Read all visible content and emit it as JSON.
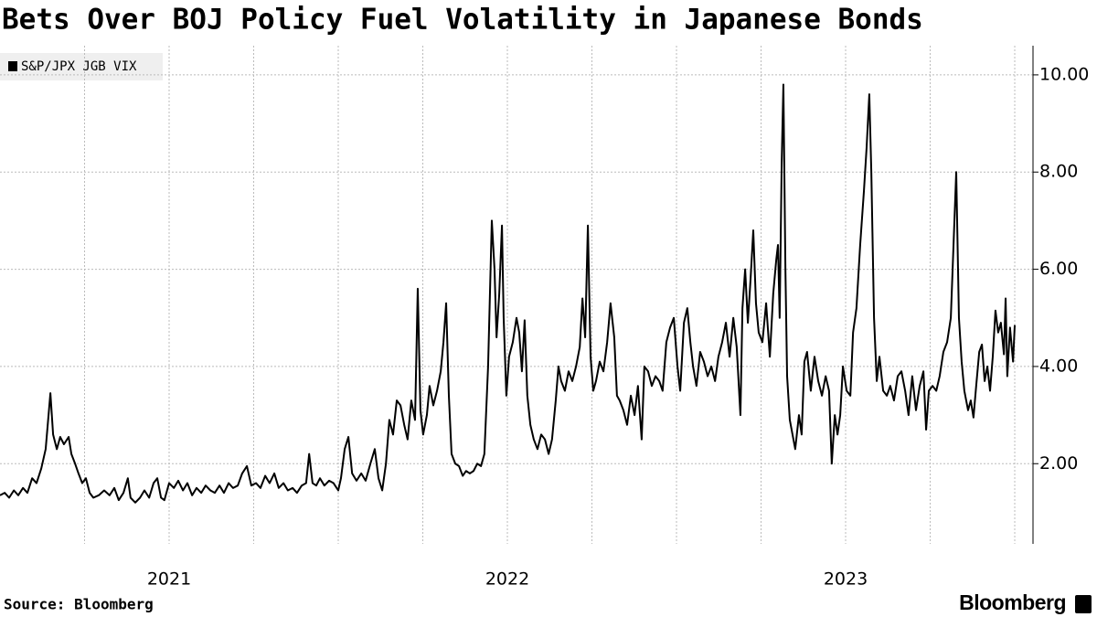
{
  "chart_data": {
    "type": "line",
    "title": "Bets Over BOJ Policy Fuel Volatility in Japanese Bonds",
    "source": "Source: Bloomberg",
    "brand": "Bloomberg",
    "legend": "top-left",
    "grid": true,
    "xlim": [
      2020.5,
      2023.554
    ],
    "xticks": [
      2021,
      2022,
      2023
    ],
    "xgrid": [
      2020.75,
      2021,
      2021.25,
      2021.5,
      2021.75,
      2022,
      2022.25,
      2022.5,
      2022.75,
      2023,
      2023.25,
      2023.5
    ],
    "ylim": [
      0.35,
      10.6
    ],
    "yticks": [
      {
        "value": 2,
        "label": "2.00"
      },
      {
        "value": 4,
        "label": "4.00"
      },
      {
        "value": 6,
        "label": "6.00"
      },
      {
        "value": 8,
        "label": "8.00"
      },
      {
        "value": 10,
        "label": "10.00"
      }
    ],
    "x": [
      2020.5,
      2020.514,
      2020.527,
      2020.541,
      2020.554,
      2020.568,
      2020.581,
      2020.595,
      2020.608,
      2020.622,
      2020.635,
      2020.649,
      2020.657,
      2020.668,
      2020.678,
      2020.689,
      2020.703,
      2020.711,
      2020.722,
      2020.732,
      2020.743,
      2020.754,
      2020.765,
      2020.776,
      2020.792,
      2020.808,
      2020.824,
      2020.838,
      2020.851,
      2020.865,
      2020.878,
      2020.886,
      2020.9,
      2020.914,
      2020.927,
      2020.941,
      2020.954,
      2020.965,
      2020.976,
      2020.986,
      2021.0,
      2021.014,
      2021.027,
      2021.041,
      2021.054,
      2021.068,
      2021.081,
      2021.095,
      2021.108,
      2021.122,
      2021.135,
      2021.149,
      2021.162,
      2021.176,
      2021.189,
      2021.203,
      2021.216,
      2021.23,
      2021.243,
      2021.257,
      2021.27,
      2021.284,
      2021.297,
      2021.311,
      2021.324,
      2021.338,
      2021.351,
      2021.365,
      2021.378,
      2021.392,
      2021.405,
      2021.414,
      2021.424,
      2021.435,
      2021.446,
      2021.459,
      2021.473,
      2021.486,
      2021.5,
      2021.508,
      2021.519,
      2021.53,
      2021.541,
      2021.554,
      2021.568,
      2021.581,
      2021.595,
      2021.608,
      2021.619,
      2021.63,
      2021.641,
      2021.651,
      2021.662,
      2021.673,
      2021.684,
      2021.695,
      2021.705,
      2021.716,
      2021.727,
      2021.735,
      2021.743,
      2021.751,
      2021.762,
      2021.77,
      2021.781,
      2021.792,
      2021.803,
      2021.811,
      2021.819,
      2021.827,
      2021.835,
      2021.846,
      2021.857,
      2021.868,
      2021.878,
      2021.889,
      2021.9,
      2021.911,
      2021.922,
      2021.932,
      2021.943,
      2021.954,
      2021.962,
      2021.968,
      2021.976,
      2021.984,
      2021.989,
      2021.997,
      2022.005,
      2022.016,
      2022.027,
      2022.035,
      2022.043,
      2022.051,
      2022.059,
      2022.068,
      2022.078,
      2022.089,
      2022.1,
      2022.111,
      2022.122,
      2022.132,
      2022.143,
      2022.151,
      2022.159,
      2022.17,
      2022.181,
      2022.192,
      2022.203,
      2022.214,
      2022.222,
      2022.23,
      2022.238,
      2022.246,
      2022.254,
      2022.262,
      2022.273,
      2022.284,
      2022.295,
      2022.305,
      2022.316,
      2022.324,
      2022.332,
      2022.343,
      2022.354,
      2022.365,
      2022.376,
      2022.386,
      2022.397,
      2022.405,
      2022.416,
      2022.427,
      2022.438,
      2022.449,
      2022.459,
      2022.47,
      2022.481,
      2022.492,
      2022.503,
      2022.511,
      2022.522,
      2022.532,
      2022.541,
      2022.549,
      2022.559,
      2022.57,
      2022.581,
      2022.592,
      2022.603,
      2022.614,
      2022.624,
      2022.635,
      2022.646,
      2022.657,
      2022.668,
      2022.678,
      2022.689,
      2022.695,
      2022.703,
      2022.711,
      2022.719,
      2022.727,
      2022.735,
      2022.743,
      2022.754,
      2022.765,
      2022.776,
      2022.786,
      2022.795,
      2022.8,
      2022.805,
      2022.811,
      2022.816,
      2022.822,
      2022.827,
      2022.835,
      2022.843,
      2022.851,
      2022.862,
      2022.87,
      2022.878,
      2022.886,
      2022.897,
      2022.908,
      2022.919,
      2022.93,
      2022.941,
      2022.951,
      2022.959,
      2022.968,
      2022.976,
      2022.984,
      2022.992,
      2023.003,
      2023.014,
      2023.022,
      2023.032,
      2023.043,
      2023.054,
      2023.062,
      2023.07,
      2023.076,
      2023.084,
      2023.092,
      2023.1,
      2023.111,
      2023.122,
      2023.132,
      2023.143,
      2023.154,
      2023.165,
      2023.176,
      2023.186,
      2023.197,
      2023.208,
      2023.219,
      2023.23,
      2023.238,
      2023.246,
      2023.257,
      2023.268,
      2023.278,
      2023.289,
      2023.3,
      2023.311,
      2023.319,
      2023.327,
      2023.335,
      2023.343,
      2023.351,
      2023.362,
      2023.37,
      2023.378,
      2023.386,
      2023.395,
      2023.403,
      2023.411,
      2023.419,
      2023.427,
      2023.435,
      2023.443,
      2023.451,
      2023.459,
      2023.468,
      2023.473,
      2023.478,
      2023.486,
      2023.495,
      2023.5
    ],
    "series": [
      {
        "name": "S&P/JPX JGB VIX",
        "color": "#000000",
        "values": [
          1.35,
          1.4,
          1.3,
          1.45,
          1.35,
          1.5,
          1.4,
          1.7,
          1.6,
          1.9,
          2.3,
          3.45,
          2.6,
          2.3,
          2.55,
          2.4,
          2.55,
          2.2,
          2.0,
          1.8,
          1.6,
          1.7,
          1.4,
          1.3,
          1.35,
          1.45,
          1.35,
          1.5,
          1.25,
          1.4,
          1.7,
          1.3,
          1.2,
          1.3,
          1.45,
          1.3,
          1.6,
          1.7,
          1.3,
          1.25,
          1.6,
          1.5,
          1.65,
          1.45,
          1.6,
          1.35,
          1.5,
          1.4,
          1.55,
          1.45,
          1.4,
          1.55,
          1.4,
          1.6,
          1.5,
          1.55,
          1.8,
          1.95,
          1.55,
          1.6,
          1.5,
          1.75,
          1.6,
          1.8,
          1.5,
          1.6,
          1.45,
          1.5,
          1.4,
          1.55,
          1.6,
          2.2,
          1.6,
          1.55,
          1.7,
          1.55,
          1.65,
          1.6,
          1.45,
          1.7,
          2.3,
          2.55,
          1.8,
          1.65,
          1.8,
          1.65,
          2.0,
          2.3,
          1.7,
          1.45,
          2.0,
          2.9,
          2.6,
          3.3,
          3.2,
          2.8,
          2.5,
          3.3,
          2.9,
          5.6,
          3.1,
          2.6,
          3.0,
          3.6,
          3.2,
          3.5,
          3.9,
          4.5,
          5.3,
          3.4,
          2.2,
          2.0,
          1.95,
          1.75,
          1.85,
          1.8,
          1.85,
          2.0,
          1.95,
          2.2,
          4.0,
          7.0,
          6.0,
          4.6,
          5.5,
          6.9,
          5.0,
          3.4,
          4.2,
          4.5,
          5.0,
          4.7,
          3.9,
          4.95,
          3.4,
          2.8,
          2.5,
          2.3,
          2.6,
          2.5,
          2.2,
          2.5,
          3.3,
          4.0,
          3.7,
          3.5,
          3.9,
          3.7,
          4.0,
          4.4,
          5.4,
          4.6,
          6.9,
          4.2,
          3.5,
          3.7,
          4.1,
          3.9,
          4.5,
          5.3,
          4.6,
          3.4,
          3.3,
          3.1,
          2.8,
          3.4,
          3.0,
          3.6,
          2.5,
          4.0,
          3.9,
          3.6,
          3.8,
          3.7,
          3.5,
          4.5,
          4.8,
          5.0,
          4.0,
          3.5,
          4.9,
          5.2,
          4.5,
          4.0,
          3.6,
          4.3,
          4.1,
          3.8,
          4.0,
          3.7,
          4.2,
          4.5,
          4.9,
          4.2,
          5.0,
          4.4,
          3.0,
          5.2,
          6.0,
          4.9,
          5.8,
          6.8,
          5.3,
          4.7,
          4.5,
          5.3,
          4.2,
          5.5,
          6.2,
          6.5,
          5.0,
          8.2,
          9.8,
          6.0,
          3.8,
          2.9,
          2.6,
          2.3,
          3.0,
          2.6,
          4.1,
          4.3,
          3.5,
          4.2,
          3.7,
          3.4,
          3.8,
          3.5,
          2.0,
          3.0,
          2.6,
          3.0,
          4.0,
          3.5,
          3.4,
          4.7,
          5.2,
          6.5,
          7.6,
          8.5,
          9.6,
          8.0,
          5.0,
          3.7,
          4.2,
          3.5,
          3.4,
          3.6,
          3.3,
          3.8,
          3.9,
          3.5,
          3.0,
          3.8,
          3.1,
          3.6,
          3.9,
          2.7,
          3.5,
          3.6,
          3.5,
          3.8,
          4.3,
          4.5,
          5.0,
          6.5,
          8.0,
          5.0,
          4.1,
          3.5,
          3.1,
          3.3,
          2.95,
          3.6,
          4.3,
          4.45,
          3.7,
          4.0,
          3.5,
          4.2,
          5.15,
          4.7,
          4.9,
          4.25,
          5.4,
          3.8,
          4.8,
          4.1,
          4.85
        ]
      }
    ]
  }
}
